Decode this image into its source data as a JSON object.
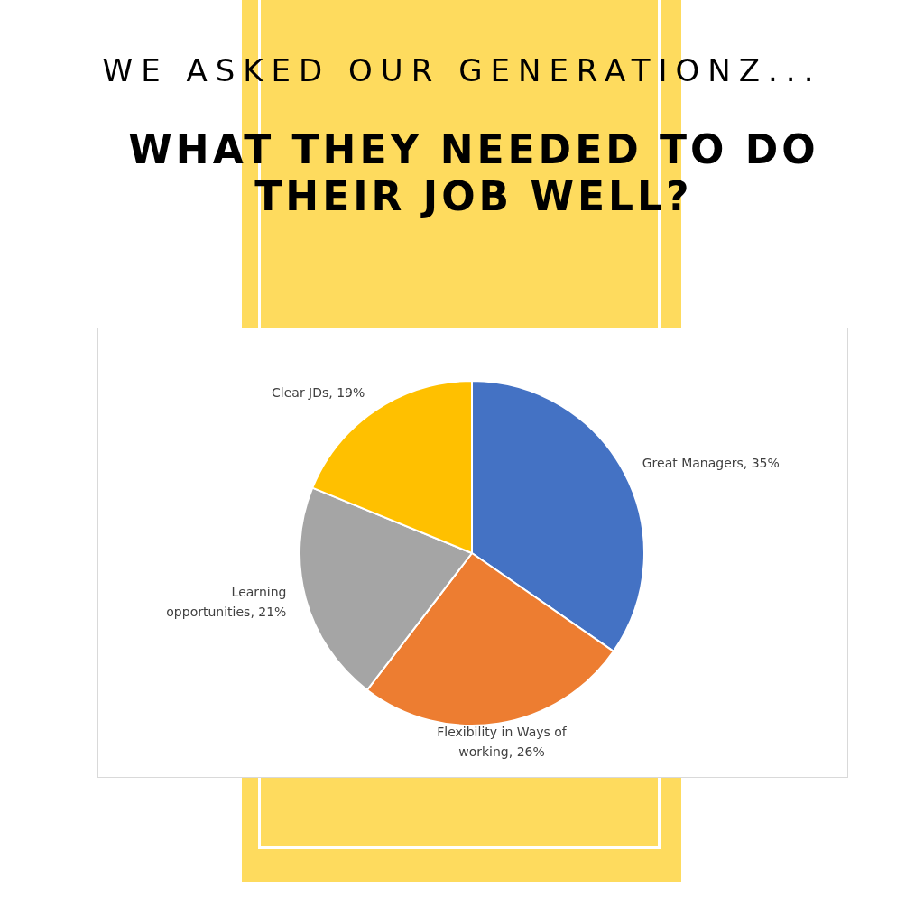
{
  "chart_data": {
    "type": "pie",
    "subtitle": "WE ASKED OUR GENERATIONZ...",
    "title": "WHAT THEY NEEDED TO DO THEIR JOB WELL?",
    "categories": [
      "Great Managers",
      "Flexibility in Ways of working",
      "Learning opportunities",
      "Clear JDs"
    ],
    "values": [
      35,
      26,
      21,
      19
    ],
    "value_labels": [
      "35%",
      "26%",
      "21%",
      "19%"
    ],
    "colors": [
      "#4472c4",
      "#ed7d31",
      "#a5a5a5",
      "#ffc000"
    ],
    "legend": false
  }
}
